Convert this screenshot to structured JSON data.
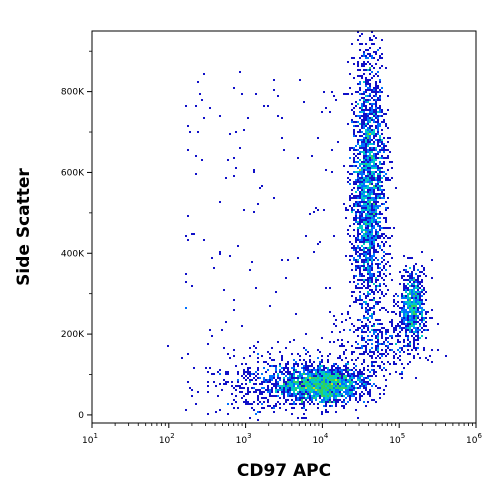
{
  "chart_data": {
    "type": "scatter",
    "subtype": "flow-cytometry density dot plot",
    "title": "",
    "xlabel": "CD97 APC",
    "ylabel": "Side Scatter",
    "x_scale": "log",
    "xlim": [
      10,
      1000000
    ],
    "ylim": [
      -20000,
      950000
    ],
    "x_ticks": [
      {
        "value": 10,
        "base": "10",
        "exp": "1"
      },
      {
        "value": 100,
        "base": "10",
        "exp": "2"
      },
      {
        "value": 1000,
        "base": "10",
        "exp": "3"
      },
      {
        "value": 10000,
        "base": "10",
        "exp": "4"
      },
      {
        "value": 100000,
        "base": "10",
        "exp": "5"
      },
      {
        "value": 1000000,
        "base": "10",
        "exp": "6"
      }
    ],
    "y_ticks": [
      {
        "value": 0,
        "label": "0"
      },
      {
        "value": 200000,
        "label": "200K"
      },
      {
        "value": 400000,
        "label": "400K"
      },
      {
        "value": 600000,
        "label": "600K"
      },
      {
        "value": 800000,
        "label": "800K"
      }
    ],
    "density_colors": [
      "#1010c8",
      "#0070ff",
      "#00c8c8",
      "#30d060",
      "#c8e020",
      "#ffa000",
      "#e02000"
    ],
    "populations": [
      {
        "name": "",
        "x_center": 10000,
        "y_center": 75000,
        "x_spread_decades": 0.28,
        "y_spread": 22000,
        "relative_count": 0.3
      },
      {
        "name": "",
        "x_center": 40000,
        "y_center": 560000,
        "x_spread_decades": 0.11,
        "y_spread": 170000,
        "relative_count": 0.42
      },
      {
        "name": "",
        "x_center": 150000,
        "y_center": 270000,
        "x_spread_decades": 0.08,
        "y_spread": 45000,
        "relative_count": 0.12
      },
      {
        "name": "",
        "x_center": 3000,
        "y_center": 80000,
        "x_spread_decades": 0.45,
        "y_spread": 40000,
        "relative_count": 0.1
      },
      {
        "name": "",
        "x_center": 60000,
        "y_center": 180000,
        "x_spread_decades": 0.3,
        "y_spread": 40000,
        "relative_count": 0.06
      }
    ]
  }
}
